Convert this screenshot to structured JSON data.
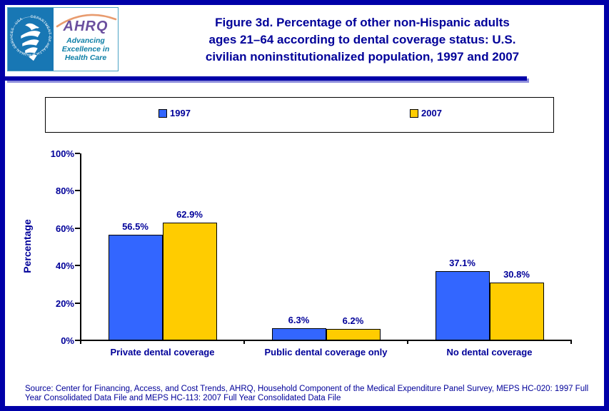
{
  "colors": {
    "frame_navy": "#0000A8",
    "text_navy": "#000099",
    "bar_1997": "#3366FF",
    "bar_2007": "#FFCC00",
    "hhs_blue": "#1877B4",
    "ahrq_purple": "#6B4F9E",
    "tagline_teal": "#0E7FA6",
    "arc_orange": "#E89B6E"
  },
  "header": {
    "logo": {
      "seal_text": "DEPARTMENT OF HEALTH & HUMAN SERVICES · USA",
      "acronym": "AHRQ",
      "tagline_lines": [
        "Advancing",
        "Excellence in",
        "Health Care"
      ]
    },
    "title_lines": [
      "Figure 3d. Percentage of other non-Hispanic adults",
      "ages 21–64 according to dental coverage status: U.S.",
      "civilian noninstitutionalized population, 1997 and 2007"
    ]
  },
  "chart_data": {
    "type": "bar",
    "title": "Figure 3d. Percentage of other non-Hispanic adults ages 21–64 according to dental coverage status: U.S. civilian noninstitutionalized population, 1997 and 2007",
    "categories": [
      "Private dental coverage",
      "Public dental coverage only",
      "No dental coverage"
    ],
    "series": [
      {
        "name": "1997",
        "color": "#3366FF",
        "values": [
          56.5,
          6.3,
          37.1
        ]
      },
      {
        "name": "2007",
        "color": "#FFCC00",
        "values": [
          62.9,
          6.2,
          30.8
        ]
      }
    ],
    "xlabel": "",
    "ylabel": "Percentage",
    "ylim": [
      0,
      100
    ],
    "yticks": [
      {
        "label": "0%",
        "value": 0
      },
      {
        "label": "20%",
        "value": 20
      },
      {
        "label": "40%",
        "value": 40
      },
      {
        "label": "60%",
        "value": 60
      },
      {
        "label": "80%",
        "value": 80
      },
      {
        "label": "100%",
        "value": 100
      }
    ],
    "grid": false,
    "legend_position": "top",
    "value_labels": [
      "56.5%",
      "6.3%",
      "37.1%",
      "62.9%",
      "6.2%",
      "30.8%"
    ]
  },
  "source": {
    "text": "Source: Center for Financing, Access, and Cost Trends, AHRQ, Household Component of the Medical Expenditure Panel Survey, MEPS HC-020: 1997 Full Year Consolidated Data File and MEPS HC-113: 2007 Full Year Consolidated Data File"
  }
}
